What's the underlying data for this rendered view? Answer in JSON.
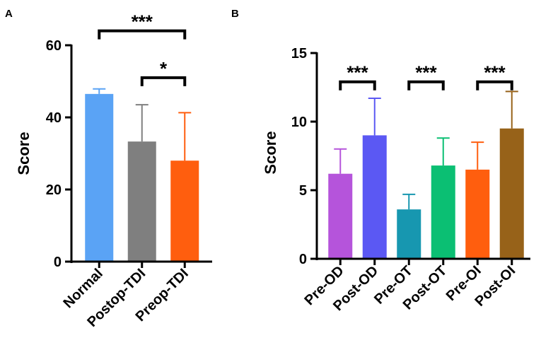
{
  "chart_data": [
    {
      "panel": "A",
      "type": "bar",
      "ylabel": "Score",
      "ylim": [
        0,
        60
      ],
      "yticks": [
        0,
        20,
        40,
        60
      ],
      "categories": [
        "Normal",
        "Postop-TDI",
        "Preop-TDI"
      ],
      "values": [
        46.5,
        33.3,
        28.0
      ],
      "errors": [
        1.4,
        10.2,
        13.3
      ],
      "colors": [
        "#5aa3f5",
        "#7f7f7f",
        "#ff5e0e"
      ],
      "significance": [
        {
          "from": 0,
          "to": 2,
          "label": "***",
          "at": 64
        },
        {
          "from": 1,
          "to": 2,
          "label": "*",
          "at": 51
        }
      ]
    },
    {
      "panel": "B",
      "type": "bar",
      "ylabel": "Score",
      "ylim": [
        0,
        15
      ],
      "yticks": [
        0,
        5,
        10,
        15
      ],
      "categories": [
        "Pre-OD",
        "Post-OD",
        "Pre-OT",
        "Post-OT",
        "Pre-OI",
        "Post-OI"
      ],
      "values": [
        6.2,
        9.0,
        3.6,
        6.8,
        6.5,
        9.5
      ],
      "errors": [
        1.8,
        2.7,
        1.1,
        2.0,
        2.0,
        2.7
      ],
      "colors": [
        "#b554db",
        "#5b58f3",
        "#1797b0",
        "#0bbf73",
        "#ff5e0e",
        "#976219"
      ],
      "significance": [
        {
          "from": 0,
          "to": 1,
          "label": "***",
          "at": 12.9
        },
        {
          "from": 2,
          "to": 3,
          "label": "***",
          "at": 12.9
        },
        {
          "from": 4,
          "to": 5,
          "label": "***",
          "at": 12.9
        }
      ]
    }
  ]
}
